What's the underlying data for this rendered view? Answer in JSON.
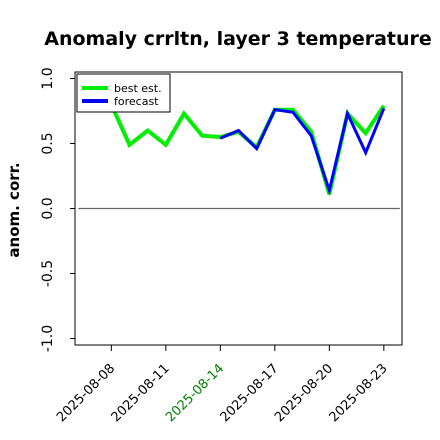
{
  "chart_data": {
    "type": "line",
    "title": "Anomaly crrltn, layer 3 temperature",
    "xlabel": "",
    "ylabel": "anom. corr.",
    "x": [
      "2025-08-08",
      "2025-08-09",
      "2025-08-10",
      "2025-08-11",
      "2025-08-12",
      "2025-08-13",
      "2025-08-14",
      "2025-08-15",
      "2025-08-16",
      "2025-08-17",
      "2025-08-18",
      "2025-08-19",
      "2025-08-20",
      "2025-08-21",
      "2025-08-22",
      "2025-08-23"
    ],
    "xtick_labels": [
      "2025-08-08",
      "2025-08-11",
      "2025-08-14",
      "2025-08-17",
      "2025-08-20",
      "2025-08-23"
    ],
    "xtick_colors": [
      "#000000",
      "#000000",
      "#008000",
      "#000000",
      "#000000",
      "#000000"
    ],
    "xlim": [
      "2025-08-06",
      "2025-08-24"
    ],
    "ylim": [
      -1.05,
      1.05
    ],
    "yticks": [
      -1.0,
      -0.5,
      0.0,
      0.5,
      1.0
    ],
    "ytick_labels": [
      "-1.0",
      "-0.5",
      "0.0",
      "0.5",
      "1.0"
    ],
    "zero_line": 0.0,
    "grid": false,
    "legend_position": "top-left",
    "series": [
      {
        "name": "best est.",
        "color": "#00ee00",
        "x": [
          "2025-08-08",
          "2025-08-09",
          "2025-08-10",
          "2025-08-11",
          "2025-08-12",
          "2025-08-13",
          "2025-08-14",
          "2025-08-15",
          "2025-08-16",
          "2025-08-17",
          "2025-08-18",
          "2025-08-19",
          "2025-08-20",
          "2025-08-21",
          "2025-08-22",
          "2025-08-23"
        ],
        "values": [
          0.8,
          0.49,
          0.6,
          0.49,
          0.73,
          0.56,
          0.55,
          0.59,
          0.47,
          0.76,
          0.76,
          0.59,
          0.11,
          0.73,
          0.58,
          0.79
        ]
      },
      {
        "name": "forecast",
        "color": "#0000ff",
        "x": [
          "2025-08-14",
          "2025-08-15",
          "2025-08-16",
          "2025-08-17",
          "2025-08-18",
          "2025-08-19",
          "2025-08-20",
          "2025-08-21",
          "2025-08-22",
          "2025-08-23"
        ],
        "values": [
          0.54,
          0.6,
          0.46,
          0.76,
          0.74,
          0.56,
          0.14,
          0.73,
          0.43,
          0.77
        ]
      }
    ]
  }
}
